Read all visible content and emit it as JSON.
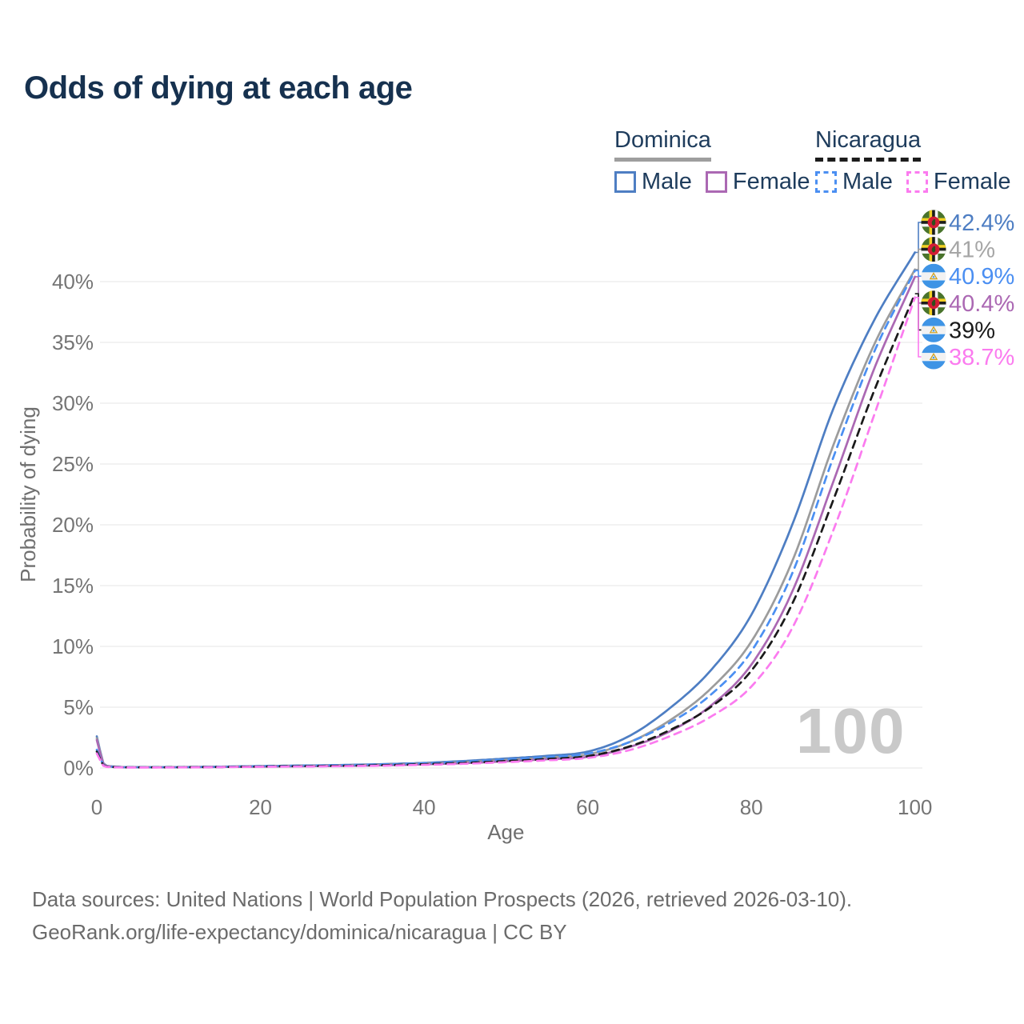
{
  "title": "Odds of dying at each age",
  "watermark": "100",
  "legend": {
    "groups": [
      {
        "label": "Dominica",
        "line_style": "solid",
        "underline_color": "#9e9e9e",
        "items": [
          {
            "label": "Male",
            "color": "#4e7ec3"
          },
          {
            "label": "Female",
            "color": "#ab68b3"
          }
        ]
      },
      {
        "label": "Nicaragua",
        "line_style": "dashed",
        "underline_color": "#1c1c1c",
        "items": [
          {
            "label": "Male",
            "color": "#4b8ff2"
          },
          {
            "label": "Female",
            "color": "#fb7bef"
          }
        ]
      }
    ]
  },
  "footer": {
    "line1": "Data sources: United Nations | World Population Prospects (2026, retrieved 2026-03-10).",
    "line2": "GeoRank.org/life-expectancy/dominica/nicaragua | CC BY"
  },
  "chart_data": {
    "type": "line",
    "title": "Odds of dying at each age",
    "xlabel": "Age",
    "ylabel": "Probability of dying",
    "xlim": [
      0,
      100
    ],
    "ylim_percent": [
      0,
      44
    ],
    "x_ticks": [
      0,
      20,
      40,
      60,
      80,
      100
    ],
    "y_tick_labels": [
      "0%",
      "5%",
      "10%",
      "15%",
      "20%",
      "25%",
      "30%",
      "35%",
      "40%"
    ],
    "grid": "horizontal",
    "legend_position": "top-right",
    "values_unit": "percent probability of dying at each age",
    "x": [
      0,
      1,
      5,
      10,
      15,
      20,
      25,
      30,
      35,
      40,
      45,
      50,
      55,
      60,
      65,
      70,
      75,
      80,
      85,
      90,
      95,
      100
    ],
    "series": [
      {
        "name": "Dominica Male",
        "flag": "dominica",
        "color": "#4e7ec3",
        "dashed": false,
        "values": [
          2.6,
          0.2,
          0.07,
          0.08,
          0.11,
          0.16,
          0.2,
          0.25,
          0.32,
          0.42,
          0.58,
          0.78,
          1.0,
          1.35,
          2.6,
          4.9,
          8.0,
          12.6,
          20.0,
          29.5,
          36.8,
          42.4
        ],
        "end_label": "42.4%",
        "end_label_color": "#4e7ec3",
        "label_row": 0
      },
      {
        "name": "Dominica Both sexes",
        "flag": "dominica",
        "color": "#9c9c9c",
        "dashed": false,
        "values": [
          2.45,
          0.18,
          0.06,
          0.07,
          0.1,
          0.14,
          0.17,
          0.21,
          0.27,
          0.36,
          0.49,
          0.67,
          0.85,
          1.12,
          2.1,
          3.9,
          6.5,
          10.4,
          17.0,
          26.5,
          34.8,
          41.0
        ],
        "end_label": "41%",
        "end_label_color": "#a6a6a6",
        "label_row": 1
      },
      {
        "name": "Dominica Female",
        "flag": "dominica",
        "color": "#ab68b3",
        "dashed": false,
        "values": [
          2.3,
          0.16,
          0.05,
          0.06,
          0.08,
          0.11,
          0.14,
          0.17,
          0.22,
          0.3,
          0.4,
          0.55,
          0.72,
          0.92,
          1.7,
          3.0,
          5.1,
          8.5,
          14.5,
          23.5,
          32.8,
          40.4
        ],
        "end_label": "40.4%",
        "end_label_color": "#ab68b3",
        "label_row": 3
      },
      {
        "name": "Nicaragua Male",
        "flag": "nicaragua",
        "color": "#4b8ff2",
        "dashed": true,
        "values": [
          1.5,
          0.13,
          0.06,
          0.07,
          0.1,
          0.15,
          0.19,
          0.23,
          0.29,
          0.38,
          0.51,
          0.7,
          0.9,
          1.18,
          2.1,
          3.7,
          6.0,
          9.6,
          16.0,
          25.5,
          34.2,
          40.9
        ],
        "end_label": "40.9%",
        "end_label_color": "#4b8ff2",
        "label_row": 2
      },
      {
        "name": "Nicaragua Both sexes",
        "flag": "nicaragua",
        "color": "#1a1a1a",
        "dashed": true,
        "values": [
          1.35,
          0.12,
          0.05,
          0.06,
          0.08,
          0.12,
          0.15,
          0.18,
          0.23,
          0.31,
          0.42,
          0.57,
          0.74,
          0.97,
          1.75,
          3.1,
          5.0,
          8.0,
          13.5,
          22.0,
          31.0,
          39.0
        ],
        "end_label": "39%",
        "end_label_color": "#1a1a1a",
        "label_row": 4
      },
      {
        "name": "Nicaragua Female",
        "flag": "nicaragua",
        "color": "#fb7bef",
        "dashed": true,
        "values": [
          1.2,
          0.1,
          0.04,
          0.05,
          0.07,
          0.1,
          0.12,
          0.15,
          0.19,
          0.26,
          0.35,
          0.48,
          0.63,
          0.83,
          1.45,
          2.6,
          4.2,
          6.7,
          11.5,
          19.5,
          29.0,
          38.7
        ],
        "end_label": "38.7%",
        "end_label_color": "#fb7bef",
        "label_row": 5
      }
    ]
  }
}
